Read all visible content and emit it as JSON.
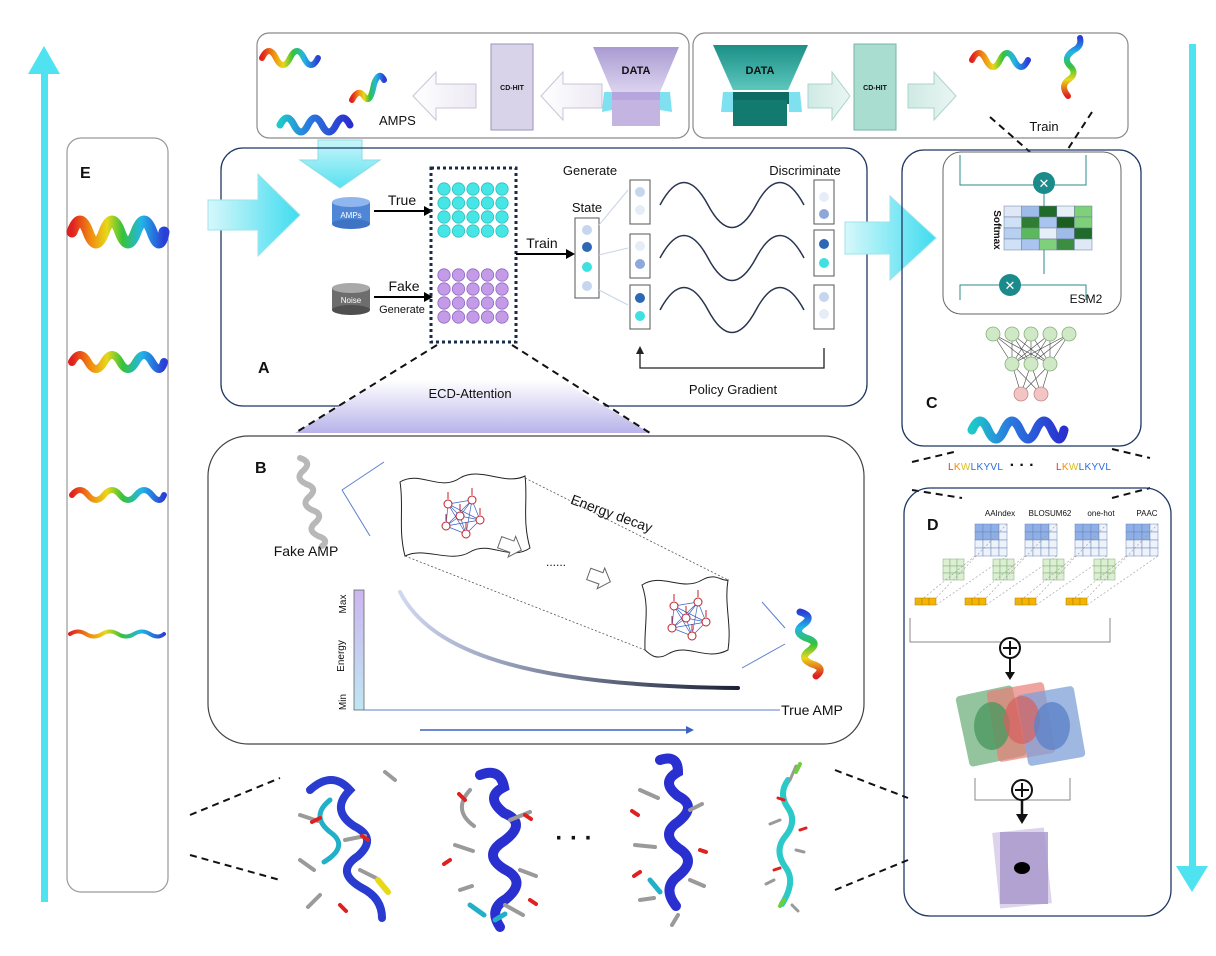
{
  "top_left_panel": {
    "data_label": "DATA",
    "cdhit_label": "CD-HIT",
    "amps_label": "AMPS"
  },
  "top_right_panel": {
    "data_label": "DATA",
    "cdhit_label": "CD-HIT",
    "train_label": "Train"
  },
  "panel_a": {
    "letter": "A",
    "amps_db_label": "AMPs",
    "noise_label": "Noise",
    "true_label": "True",
    "fake_label": "Fake",
    "generate_small_label": "Generate",
    "train_label": "Train",
    "state_label": "State",
    "generate_label": "Generate",
    "discriminate_label": "Discriminate",
    "policy_gradient_label": "Policy Gradient",
    "ecd_attention_label": "ECD-Attention"
  },
  "panel_b": {
    "letter": "B",
    "fake_amp_label": "Fake AMP",
    "true_amp_label": "True AMP",
    "energy_decay_label": "Energy decay",
    "ellipsis": "......",
    "axis_max": "Max",
    "axis_energy": "Energy",
    "axis_min": "Min"
  },
  "panel_c": {
    "letter": "C",
    "softmax_label": "Softmax",
    "esm2_label": "ESM2"
  },
  "sequence_row": {
    "sequence_left": "LKWLKYVL",
    "dots": "· · ·",
    "sequence_right": "LKWLKYVL"
  },
  "panel_d": {
    "letter": "D",
    "features": [
      "AAIndex",
      "BLOSUM62",
      "one-hot",
      "PAAC"
    ]
  },
  "panel_e": {
    "letter": "E"
  },
  "bottom_row": {
    "dots": "· · ·"
  },
  "colors": {
    "panel_border": "#1f3864",
    "cyan_arrow": "#4fe3f2",
    "teal_data": "#1e8f86",
    "lavender_data": "#b9a8d8",
    "cyan_dot": "#47e6e6",
    "violet_dot": "#c39be6",
    "navy": "#1a2b4a"
  },
  "icons": [
    "helix-icon",
    "database-icon",
    "arrow-icon",
    "neural-network-icon",
    "attention-matrix-icon",
    "energy-landscape-icon",
    "protein-structure-icon"
  ]
}
